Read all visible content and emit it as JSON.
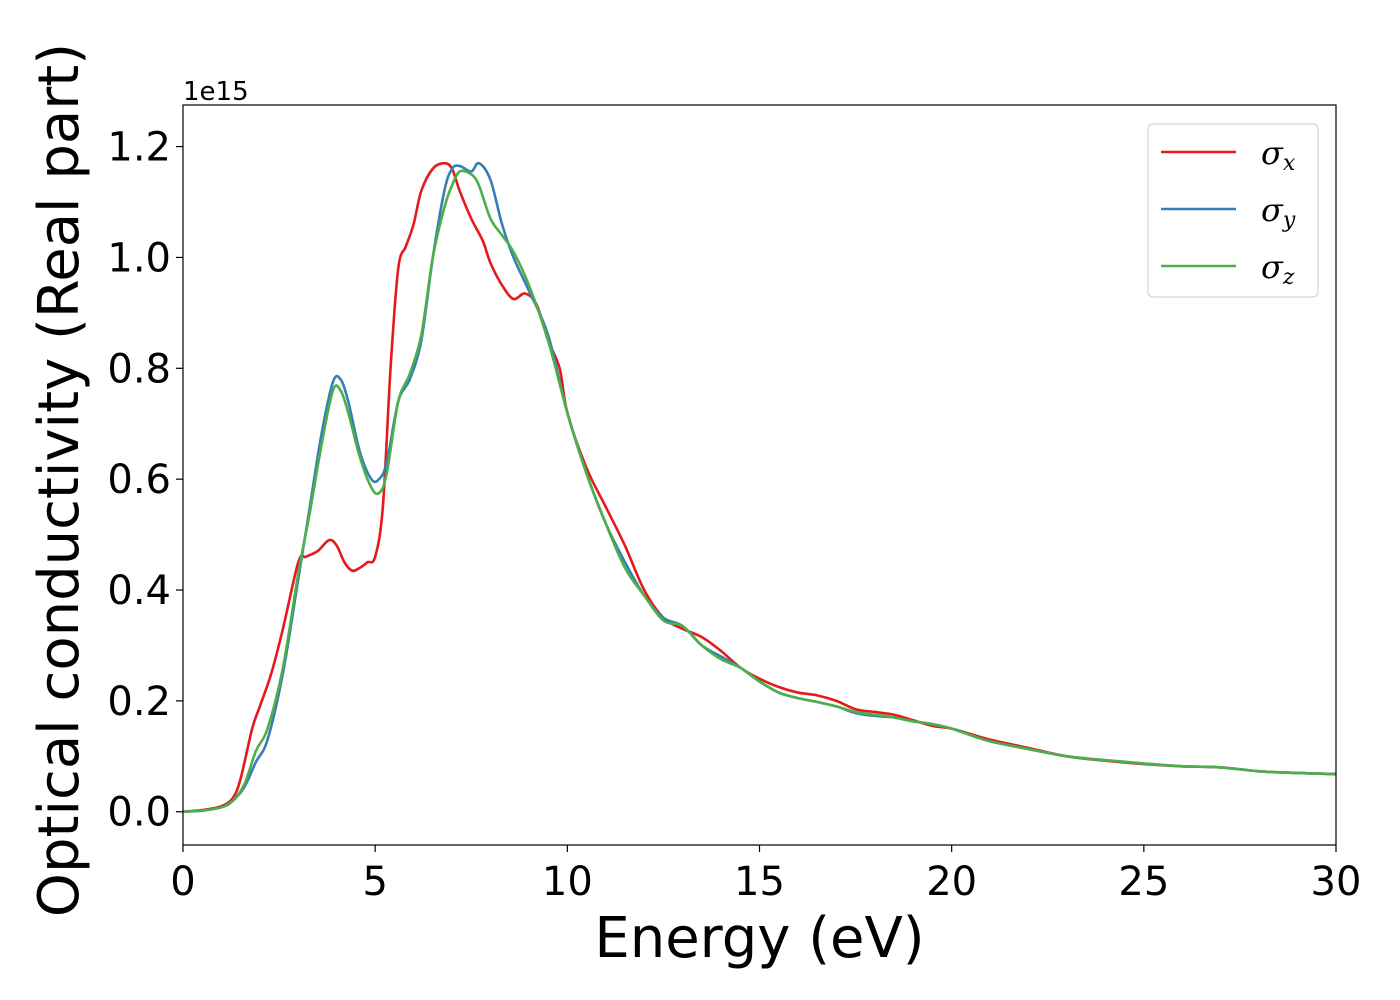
{
  "chart_data": {
    "type": "line",
    "title": "",
    "xlabel": "Energy (eV)",
    "ylabel": "Optical conductivity (Real part)",
    "y_offset_label": "1e15",
    "xlim": [
      0,
      30
    ],
    "ylim": [
      -0.06,
      1.275
    ],
    "xticks": [
      0,
      5,
      10,
      15,
      20,
      25,
      30
    ],
    "yticks": [
      0.0,
      0.2,
      0.4,
      0.6,
      0.8,
      1.0,
      1.2
    ],
    "xtick_labels": [
      "0",
      "5",
      "10",
      "15",
      "20",
      "25",
      "30"
    ],
    "ytick_labels": [
      "0.0",
      "0.2",
      "0.4",
      "0.6",
      "0.8",
      "1.0",
      "1.2"
    ],
    "grid": false,
    "legend_position": "top-right",
    "series": [
      {
        "name": "σx",
        "legend_symbol": "σ",
        "legend_sub": "x",
        "color": "#e41a1c",
        "x": [
          0,
          0.5,
          1,
          1.3,
          1.5,
          1.8,
          2.0,
          2.3,
          2.6,
          3.0,
          3.2,
          3.5,
          3.8,
          4.0,
          4.2,
          4.4,
          4.6,
          4.8,
          5.0,
          5.2,
          5.4,
          5.6,
          5.8,
          6.0,
          6.2,
          6.5,
          6.8,
          7.0,
          7.2,
          7.5,
          7.8,
          8.0,
          8.3,
          8.6,
          8.9,
          9.2,
          9.5,
          9.8,
          10.0,
          10.5,
          11.0,
          11.5,
          12.0,
          12.5,
          13.0,
          13.5,
          14.0,
          14.5,
          15.0,
          15.5,
          16.0,
          16.5,
          17.0,
          17.5,
          18.0,
          18.5,
          19.0,
          19.5,
          20.0,
          20.5,
          21.0,
          22.0,
          23.0,
          24.0,
          25.0,
          26.0,
          27.0,
          28.0,
          29.0,
          30.0
        ],
        "values": [
          0.0,
          0.003,
          0.01,
          0.025,
          0.06,
          0.15,
          0.19,
          0.25,
          0.33,
          0.45,
          0.46,
          0.47,
          0.49,
          0.48,
          0.45,
          0.435,
          0.44,
          0.45,
          0.46,
          0.55,
          0.8,
          0.98,
          1.02,
          1.06,
          1.12,
          1.16,
          1.17,
          1.16,
          1.12,
          1.07,
          1.03,
          0.99,
          0.95,
          0.925,
          0.935,
          0.915,
          0.85,
          0.8,
          0.72,
          0.62,
          0.55,
          0.48,
          0.4,
          0.35,
          0.33,
          0.315,
          0.29,
          0.26,
          0.24,
          0.225,
          0.215,
          0.21,
          0.2,
          0.185,
          0.18,
          0.175,
          0.165,
          0.155,
          0.15,
          0.14,
          0.13,
          0.115,
          0.1,
          0.092,
          0.086,
          0.082,
          0.08,
          0.073,
          0.07,
          0.068
        ]
      },
      {
        "name": "σy",
        "legend_symbol": "σ",
        "legend_sub": "y",
        "color": "#377eb8",
        "x": [
          0,
          0.5,
          1,
          1.3,
          1.6,
          1.9,
          2.2,
          2.6,
          3.0,
          3.3,
          3.6,
          3.9,
          4.1,
          4.3,
          4.6,
          4.9,
          5.1,
          5.3,
          5.6,
          5.9,
          6.2,
          6.5,
          6.8,
          7.0,
          7.2,
          7.5,
          7.7,
          8.0,
          8.3,
          8.6,
          9.0,
          9.5,
          10.0,
          10.5,
          11.0,
          11.5,
          12.0,
          12.5,
          13.0,
          13.5,
          14.0,
          14.5,
          15.0,
          15.5,
          16.0,
          16.5,
          17.0,
          17.5,
          18.0,
          18.5,
          19.0,
          19.5,
          20.0,
          20.5,
          21.0,
          22.0,
          23.0,
          24.0,
          25.0,
          26.0,
          27.0,
          28.0,
          29.0,
          30.0
        ],
        "values": [
          0.0,
          0.002,
          0.008,
          0.02,
          0.045,
          0.09,
          0.13,
          0.25,
          0.42,
          0.55,
          0.68,
          0.775,
          0.78,
          0.74,
          0.65,
          0.6,
          0.6,
          0.63,
          0.74,
          0.78,
          0.85,
          1.0,
          1.12,
          1.16,
          1.165,
          1.155,
          1.17,
          1.14,
          1.06,
          1.0,
          0.94,
          0.86,
          0.72,
          0.61,
          0.52,
          0.45,
          0.39,
          0.35,
          0.335,
          0.3,
          0.28,
          0.26,
          0.235,
          0.215,
          0.205,
          0.198,
          0.19,
          0.178,
          0.173,
          0.17,
          0.163,
          0.158,
          0.15,
          0.138,
          0.127,
          0.113,
          0.1,
          0.093,
          0.087,
          0.082,
          0.08,
          0.073,
          0.07,
          0.068
        ]
      },
      {
        "name": "σz",
        "legend_symbol": "σ",
        "legend_sub": "z",
        "color": "#4daf4a",
        "x": [
          0,
          0.5,
          1,
          1.3,
          1.6,
          1.9,
          2.2,
          2.6,
          3.0,
          3.3,
          3.6,
          3.9,
          4.1,
          4.3,
          4.6,
          4.9,
          5.1,
          5.3,
          5.6,
          5.9,
          6.2,
          6.5,
          6.8,
          7.0,
          7.2,
          7.5,
          7.7,
          8.0,
          8.3,
          8.6,
          9.0,
          9.5,
          10.0,
          10.5,
          11.0,
          11.5,
          12.0,
          12.5,
          13.0,
          13.5,
          14.0,
          14.5,
          15.0,
          15.5,
          16.0,
          16.5,
          17.0,
          17.5,
          18.0,
          18.5,
          19.0,
          19.5,
          20.0,
          20.5,
          21.0,
          22.0,
          23.0,
          24.0,
          25.0,
          26.0,
          27.0,
          28.0,
          29.0,
          30.0
        ],
        "values": [
          0.0,
          0.002,
          0.008,
          0.02,
          0.05,
          0.11,
          0.15,
          0.26,
          0.43,
          0.54,
          0.66,
          0.76,
          0.76,
          0.72,
          0.64,
          0.585,
          0.575,
          0.61,
          0.74,
          0.79,
          0.86,
          1.0,
          1.09,
          1.13,
          1.155,
          1.15,
          1.13,
          1.07,
          1.04,
          1.01,
          0.95,
          0.85,
          0.72,
          0.61,
          0.52,
          0.44,
          0.39,
          0.345,
          0.335,
          0.3,
          0.275,
          0.26,
          0.235,
          0.215,
          0.205,
          0.198,
          0.19,
          0.18,
          0.175,
          0.17,
          0.163,
          0.158,
          0.15,
          0.138,
          0.127,
          0.113,
          0.1,
          0.093,
          0.087,
          0.082,
          0.08,
          0.073,
          0.07,
          0.068
        ]
      }
    ]
  }
}
